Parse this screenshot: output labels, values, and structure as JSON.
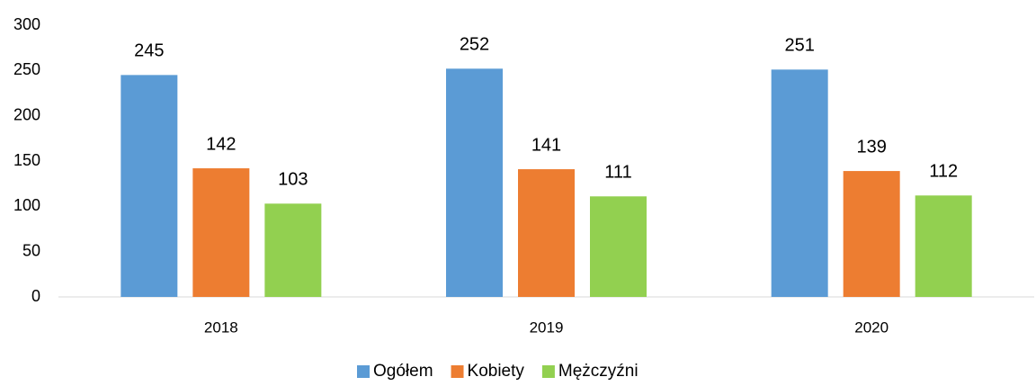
{
  "chart_data": {
    "type": "bar",
    "categories": [
      "2018",
      "2019",
      "2020"
    ],
    "series": [
      {
        "name": "Ogółem",
        "color": "#5b9bd5",
        "values": [
          245,
          252,
          251
        ]
      },
      {
        "name": "Kobiety",
        "color": "#ed7d31",
        "values": [
          142,
          141,
          139
        ]
      },
      {
        "name": "Mężczyźni",
        "color": "#92d050",
        "values": [
          103,
          111,
          112
        ]
      }
    ],
    "ylim": [
      0,
      300
    ],
    "yticks": [
      0,
      50,
      100,
      150,
      200,
      250,
      300
    ],
    "grid": false,
    "legend": "bottom"
  }
}
